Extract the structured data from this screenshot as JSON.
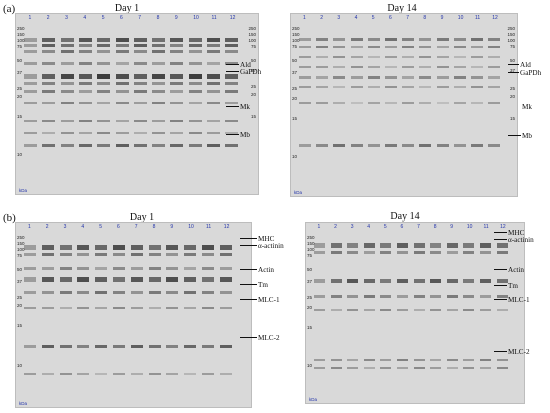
{
  "panels": [
    {
      "letter": "(a)",
      "gels": [
        {
          "title": "Day 1",
          "lanes": [
            "1",
            "2",
            "3",
            "4",
            "5",
            "6",
            "7",
            "8",
            "9",
            "10",
            "11",
            "12"
          ],
          "mw_left": [
            "250",
            "150",
            "100",
            "75",
            "50",
            "37",
            "25",
            "20",
            "15",
            "10"
          ],
          "mw_right": [
            "250",
            "150",
            "100",
            "75",
            "50",
            "37",
            "25",
            "20",
            "15"
          ],
          "kda": "kDa",
          "labels": [
            "Ald",
            "GaPDh",
            "Mk",
            "Mb"
          ]
        },
        {
          "title": "Day 14",
          "lanes": [
            "1",
            "2",
            "3",
            "4",
            "5",
            "6",
            "7",
            "8",
            "9",
            "10",
            "11",
            "12"
          ],
          "mw_left": [
            "250",
            "150",
            "100",
            "75",
            "50",
            "37",
            "25",
            "20",
            "15",
            "10"
          ],
          "mw_right": [
            "250",
            "150",
            "100",
            "75",
            "50",
            "37",
            "25",
            "20",
            "15"
          ],
          "kda": "kDa",
          "labels": [
            "Ald",
            "GaPDh",
            "Mk",
            "Mb"
          ]
        }
      ]
    },
    {
      "letter": "(b)",
      "gels": [
        {
          "title": "Day 1",
          "lanes": [
            "1",
            "2",
            "3",
            "4",
            "5",
            "6",
            "7",
            "8",
            "9",
            "10",
            "11",
            "12"
          ],
          "mw_left": [
            "250",
            "150",
            "100",
            "75",
            "50",
            "37",
            "25",
            "20",
            "15",
            "10"
          ],
          "kda": "kDa",
          "labels": [
            "MHC",
            "α-actinin",
            "Actin",
            "Tm",
            "MLC-1",
            "MLC-2"
          ]
        },
        {
          "title": "Day 14",
          "lanes": [
            "1",
            "2",
            "3",
            "4",
            "5",
            "6",
            "7",
            "8",
            "9",
            "10",
            "11",
            "12"
          ],
          "mw_left": [
            "250",
            "150",
            "100",
            "75",
            "50",
            "37",
            "25",
            "20",
            "15",
            "10"
          ],
          "kda": "kDa",
          "labels": [
            "MHC",
            "α-actinin",
            "Actin",
            "Tm",
            "MLC-1",
            "MLC-2"
          ]
        }
      ]
    }
  ]
}
